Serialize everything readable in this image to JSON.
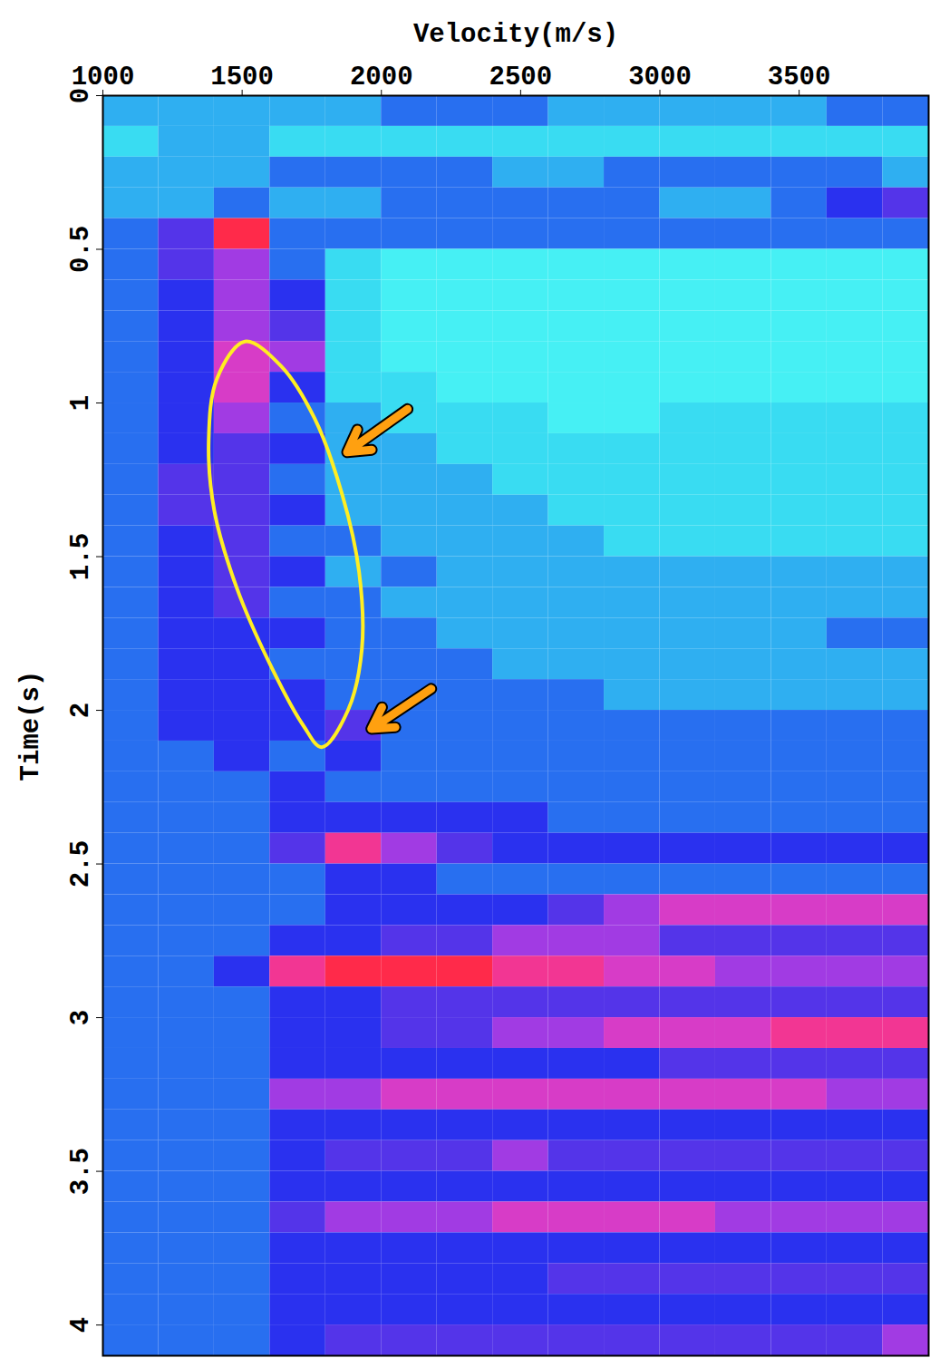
{
  "chart_data": {
    "type": "heatmap",
    "x_label": "Velocity(m/s)",
    "y_label": "Time(s)",
    "xlim": [
      1000,
      3965
    ],
    "xticks": [
      1000,
      1500,
      2000,
      2500,
      3000,
      3500
    ],
    "ylim": [
      4.1,
      0
    ],
    "yticks": [
      0,
      0.5,
      1,
      1.5,
      2,
      2.5,
      3,
      3.5,
      4
    ],
    "x": [
      1100,
      1300,
      1500,
      1700,
      1900,
      2100,
      2300,
      2500,
      2700,
      2900,
      3100,
      3300,
      3500,
      3700,
      3900
    ],
    "y": [
      0.05,
      0.15,
      0.25,
      0.35,
      0.45,
      0.55,
      0.65,
      0.75,
      0.85,
      0.95,
      1.05,
      1.15,
      1.25,
      1.35,
      1.45,
      1.55,
      1.65,
      1.75,
      1.85,
      1.95,
      2.05,
      2.15,
      2.25,
      2.35,
      2.45,
      2.55,
      2.65,
      2.75,
      2.85,
      2.95,
      3.05,
      3.15,
      3.25,
      3.35,
      3.45,
      3.55,
      3.65,
      3.75,
      3.85,
      3.95,
      4.05
    ],
    "values": [
      [
        2,
        2,
        2,
        2,
        2,
        3,
        3,
        3,
        2,
        2,
        2,
        2,
        2,
        3,
        3
      ],
      [
        1,
        2,
        2,
        1,
        1,
        1,
        1,
        1,
        1,
        1,
        1,
        1,
        1,
        1,
        1
      ],
      [
        2,
        2,
        2,
        3,
        3,
        3,
        3,
        2,
        2,
        3,
        3,
        3,
        3,
        3,
        2
      ],
      [
        2,
        2,
        3,
        2,
        2,
        3,
        3,
        3,
        3,
        3,
        2,
        2,
        3,
        4,
        5
      ],
      [
        3,
        5,
        9,
        3,
        3,
        3,
        3,
        3,
        3,
        3,
        3,
        3,
        3,
        3,
        3
      ],
      [
        3,
        5,
        6,
        3,
        1,
        0,
        0,
        0,
        0,
        0,
        0,
        0,
        0,
        0,
        0
      ],
      [
        3,
        4,
        6,
        4,
        1,
        0,
        0,
        0,
        0,
        0,
        0,
        0,
        0,
        0,
        0
      ],
      [
        3,
        4,
        6,
        5,
        1,
        0,
        0,
        0,
        0,
        0,
        0,
        0,
        0,
        0,
        0
      ],
      [
        3,
        4,
        7,
        6,
        1,
        0,
        0,
        0,
        0,
        0,
        0,
        0,
        0,
        0,
        0
      ],
      [
        3,
        4,
        7,
        4,
        1,
        1,
        0,
        0,
        0,
        0,
        0,
        0,
        0,
        0,
        0
      ],
      [
        3,
        4,
        6,
        3,
        2,
        1,
        1,
        1,
        0,
        0,
        1,
        1,
        1,
        1,
        1
      ],
      [
        3,
        4,
        5,
        4,
        2,
        2,
        1,
        1,
        1,
        1,
        1,
        1,
        1,
        1,
        1
      ],
      [
        3,
        5,
        5,
        3,
        2,
        2,
        2,
        1,
        1,
        1,
        1,
        1,
        1,
        1,
        1
      ],
      [
        3,
        5,
        5,
        4,
        2,
        2,
        2,
        2,
        1,
        1,
        1,
        1,
        1,
        1,
        1
      ],
      [
        3,
        4,
        5,
        3,
        3,
        2,
        2,
        2,
        2,
        1,
        1,
        1,
        1,
        1,
        1
      ],
      [
        3,
        4,
        5,
        4,
        2,
        3,
        2,
        2,
        2,
        2,
        2,
        2,
        2,
        2,
        2
      ],
      [
        3,
        4,
        5,
        3,
        3,
        2,
        2,
        2,
        2,
        2,
        2,
        2,
        2,
        2,
        2
      ],
      [
        3,
        4,
        4,
        4,
        3,
        3,
        2,
        2,
        2,
        2,
        2,
        2,
        2,
        3,
        3
      ],
      [
        3,
        4,
        4,
        3,
        3,
        3,
        3,
        2,
        2,
        2,
        2,
        2,
        2,
        2,
        2
      ],
      [
        3,
        4,
        4,
        4,
        3,
        3,
        3,
        3,
        3,
        2,
        2,
        2,
        2,
        2,
        2
      ],
      [
        3,
        4,
        4,
        4,
        5,
        3,
        3,
        3,
        3,
        3,
        3,
        3,
        3,
        3,
        3
      ],
      [
        3,
        3,
        4,
        3,
        4,
        3,
        3,
        3,
        3,
        3,
        3,
        3,
        3,
        3,
        3
      ],
      [
        3,
        3,
        3,
        4,
        3,
        3,
        3,
        3,
        3,
        3,
        3,
        3,
        3,
        3,
        3
      ],
      [
        3,
        3,
        3,
        4,
        4,
        4,
        4,
        4,
        3,
        3,
        3,
        3,
        3,
        3,
        3
      ],
      [
        3,
        3,
        3,
        5,
        8,
        6,
        5,
        4,
        4,
        4,
        4,
        4,
        4,
        4,
        4
      ],
      [
        3,
        3,
        3,
        3,
        4,
        4,
        3,
        3,
        3,
        3,
        3,
        3,
        3,
        3,
        3
      ],
      [
        3,
        3,
        3,
        3,
        4,
        4,
        4,
        4,
        5,
        6,
        7,
        7,
        7,
        7,
        7
      ],
      [
        3,
        3,
        3,
        4,
        4,
        5,
        5,
        6,
        6,
        6,
        5,
        5,
        5,
        5,
        5
      ],
      [
        3,
        3,
        4,
        8,
        9,
        9,
        9,
        8,
        8,
        7,
        7,
        6,
        6,
        6,
        6
      ],
      [
        3,
        3,
        3,
        4,
        4,
        5,
        5,
        5,
        5,
        5,
        5,
        5,
        5,
        5,
        5
      ],
      [
        3,
        3,
        3,
        4,
        4,
        5,
        5,
        6,
        6,
        7,
        7,
        7,
        8,
        8,
        8
      ],
      [
        3,
        3,
        3,
        4,
        4,
        4,
        4,
        4,
        4,
        4,
        5,
        5,
        5,
        5,
        5
      ],
      [
        3,
        3,
        3,
        6,
        6,
        7,
        7,
        7,
        7,
        7,
        7,
        7,
        7,
        6,
        6
      ],
      [
        3,
        3,
        3,
        4,
        4,
        4,
        4,
        4,
        4,
        4,
        4,
        4,
        4,
        4,
        4
      ],
      [
        3,
        3,
        3,
        4,
        5,
        5,
        5,
        6,
        5,
        5,
        5,
        5,
        5,
        5,
        5
      ],
      [
        3,
        3,
        3,
        4,
        4,
        4,
        4,
        4,
        4,
        4,
        4,
        4,
        4,
        4,
        4
      ],
      [
        3,
        3,
        3,
        5,
        6,
        6,
        6,
        7,
        7,
        7,
        7,
        6,
        6,
        6,
        6
      ],
      [
        3,
        3,
        3,
        4,
        4,
        4,
        4,
        4,
        4,
        4,
        4,
        4,
        4,
        4,
        4
      ],
      [
        3,
        3,
        3,
        4,
        4,
        4,
        4,
        4,
        5,
        5,
        5,
        5,
        5,
        5,
        5
      ],
      [
        3,
        3,
        3,
        4,
        4,
        4,
        4,
        4,
        4,
        4,
        4,
        4,
        4,
        4,
        4
      ],
      [
        3,
        3,
        3,
        4,
        5,
        5,
        5,
        5,
        5,
        5,
        5,
        5,
        5,
        5,
        6
      ]
    ],
    "highlight": [
      [
        1510,
        0.8
      ],
      [
        1640,
        0.88
      ],
      [
        1760,
        1.05
      ],
      [
        1860,
        1.3
      ],
      [
        1920,
        1.55
      ],
      [
        1930,
        1.8
      ],
      [
        1880,
        2.0
      ],
      [
        1786,
        2.12
      ],
      [
        1720,
        2.05
      ],
      [
        1600,
        1.85
      ],
      [
        1480,
        1.6
      ],
      [
        1400,
        1.35
      ],
      [
        1380,
        1.12
      ],
      [
        1410,
        0.92
      ]
    ],
    "arrows": [
      {
        "from": [
          2094,
          1.02
        ],
        "to": [
          1877,
          1.16
        ]
      },
      {
        "from": [
          2179,
          1.93
        ],
        "to": [
          1964,
          2.06
        ]
      }
    ]
  }
}
